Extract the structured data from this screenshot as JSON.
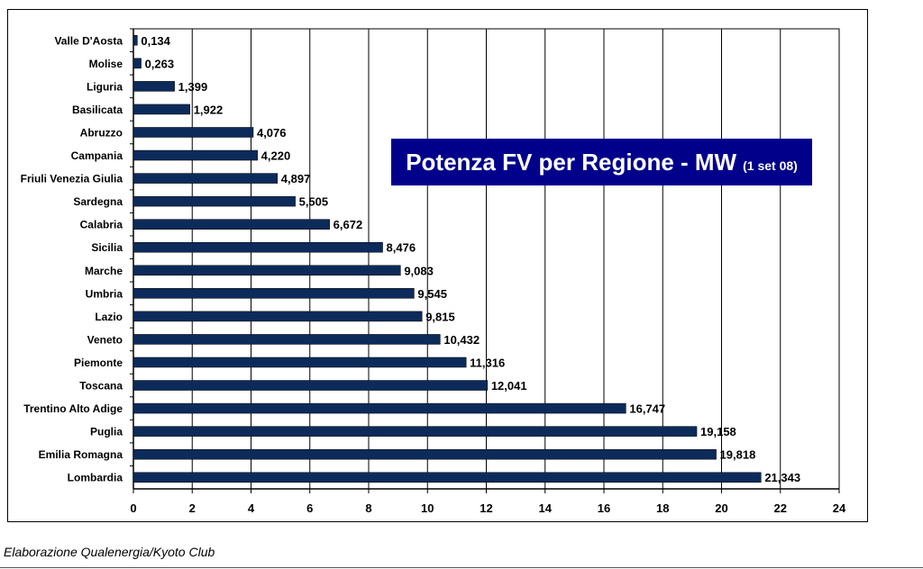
{
  "chart_data": {
    "type": "bar",
    "orientation": "horizontal",
    "title": "Potenza FV per Regione - MW",
    "subtitle": "(1 set 08)",
    "categories": [
      "Valle D'Aosta",
      "Molise",
      "Liguria",
      "Basilicata",
      "Abruzzo",
      "Campania",
      "Friuli Venezia Giulia",
      "Sardegna",
      "Calabria",
      "Sicilia",
      "Marche",
      "Umbria",
      "Lazio",
      "Veneto",
      "Piemonte",
      "Toscana",
      "Trentino Alto Adige",
      "Puglia",
      "Emilia Romagna",
      "Lombardia"
    ],
    "values": [
      0.134,
      0.263,
      1.399,
      1.922,
      4.076,
      4.22,
      4.897,
      5.505,
      6.672,
      8.476,
      9.083,
      9.545,
      9.815,
      10.432,
      11.316,
      12.041,
      16.747,
      19.158,
      19.818,
      21.343
    ],
    "value_labels": [
      "0,134",
      "0,263",
      "1,399",
      "1,922",
      "4,076",
      "4,220",
      "4,897",
      "5,505",
      "6,672",
      "8,476",
      "9,083",
      "9,545",
      "9,815",
      "10,432",
      "11,316",
      "12,041",
      "16,747",
      "19,158",
      "19,818",
      "21,343"
    ],
    "xlim": [
      0,
      24
    ],
    "x_ticks": [
      0,
      2,
      4,
      6,
      8,
      10,
      12,
      14,
      16,
      18,
      20,
      22,
      24
    ],
    "grid": "vertical",
    "bar_color": "#0d2b5a",
    "title_box_color": "#00008b"
  },
  "source_note": "Elaborazione Qualenergia/Kyoto Club"
}
